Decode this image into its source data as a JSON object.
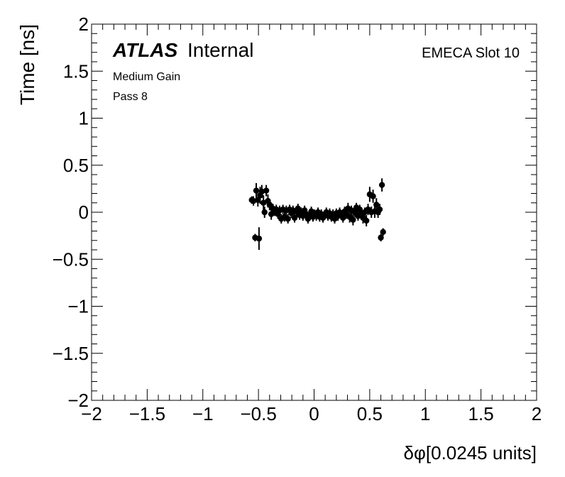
{
  "chart_data": {
    "type": "scatter",
    "title": "",
    "xlabel": "δφ[0.0245 units]",
    "ylabel": "Time [ns]",
    "xlim": [
      -2,
      2
    ],
    "ylim": [
      -2,
      2
    ],
    "x_ticks": [
      -2,
      -1.5,
      -1,
      -0.5,
      0,
      0.5,
      1,
      1.5,
      2
    ],
    "x_tick_labels": [
      "−2",
      "−1.5",
      "−1",
      "−0.5",
      "0",
      "0.5",
      "1",
      "1.5",
      "2"
    ],
    "y_ticks": [
      -2,
      -1.5,
      -1,
      -0.5,
      0,
      0.5,
      1,
      1.5,
      2
    ],
    "y_tick_labels": [
      "−2",
      "−1.5",
      "−1",
      "−0.5",
      "0",
      "0.5",
      "1",
      "1.5",
      "2"
    ],
    "grid": false,
    "annotations": {
      "experiment": "ATLAS",
      "status": "Internal",
      "line1": "Medium Gain",
      "line2": "Pass 8",
      "slot": "EMECA Slot 10"
    },
    "series": [
      {
        "marker": "filled-circle",
        "color": "#000000",
        "points": [
          {
            "x": -0.56,
            "y": 0.13,
            "err": 0.04
          },
          {
            "x": -0.545,
            "y": 0.12,
            "err": 0.05
          },
          {
            "x": -0.53,
            "y": -0.27,
            "err": 0.04
          },
          {
            "x": -0.52,
            "y": 0.23,
            "err": 0.08
          },
          {
            "x": -0.505,
            "y": 0.13,
            "err": 0.07
          },
          {
            "x": -0.495,
            "y": -0.28,
            "err": 0.12
          },
          {
            "x": -0.485,
            "y": 0.18,
            "err": 0.09
          },
          {
            "x": -0.47,
            "y": 0.22,
            "err": 0.07
          },
          {
            "x": -0.455,
            "y": 0.1,
            "err": 0.08
          },
          {
            "x": -0.445,
            "y": 0.0,
            "err": 0.06
          },
          {
            "x": -0.43,
            "y": 0.23,
            "err": 0.06
          },
          {
            "x": -0.415,
            "y": 0.12,
            "err": 0.07
          },
          {
            "x": -0.4,
            "y": 0.08,
            "err": 0.06
          },
          {
            "x": -0.385,
            "y": -0.02,
            "err": 0.06
          },
          {
            "x": -0.37,
            "y": 0.04,
            "err": 0.05
          },
          {
            "x": -0.355,
            "y": 0.01,
            "err": 0.05
          },
          {
            "x": -0.34,
            "y": 0.03,
            "err": 0.05
          },
          {
            "x": -0.325,
            "y": -0.02,
            "err": 0.05
          },
          {
            "x": -0.31,
            "y": 0.02,
            "err": 0.05
          },
          {
            "x": -0.295,
            "y": -0.07,
            "err": 0.05
          },
          {
            "x": -0.28,
            "y": 0.03,
            "err": 0.05
          },
          {
            "x": -0.265,
            "y": -0.05,
            "err": 0.05
          },
          {
            "x": -0.25,
            "y": 0.02,
            "err": 0.05
          },
          {
            "x": -0.235,
            "y": -0.07,
            "err": 0.05
          },
          {
            "x": -0.22,
            "y": 0.03,
            "err": 0.05
          },
          {
            "x": -0.205,
            "y": -0.01,
            "err": 0.05
          },
          {
            "x": -0.19,
            "y": 0.02,
            "err": 0.05
          },
          {
            "x": -0.175,
            "y": -0.06,
            "err": 0.05
          },
          {
            "x": -0.16,
            "y": 0.01,
            "err": 0.05
          },
          {
            "x": -0.145,
            "y": 0.04,
            "err": 0.05
          },
          {
            "x": -0.13,
            "y": -0.03,
            "err": 0.05
          },
          {
            "x": -0.115,
            "y": 0.0,
            "err": 0.05
          },
          {
            "x": -0.1,
            "y": -0.04,
            "err": 0.05
          },
          {
            "x": -0.085,
            "y": 0.02,
            "err": 0.05
          },
          {
            "x": -0.07,
            "y": -0.02,
            "err": 0.05
          },
          {
            "x": -0.055,
            "y": -0.07,
            "err": 0.05
          },
          {
            "x": -0.04,
            "y": -0.03,
            "err": 0.05
          },
          {
            "x": -0.025,
            "y": 0.01,
            "err": 0.05
          },
          {
            "x": -0.01,
            "y": -0.05,
            "err": 0.05
          },
          {
            "x": 0.005,
            "y": -0.02,
            "err": 0.05
          },
          {
            "x": 0.02,
            "y": -0.04,
            "err": 0.05
          },
          {
            "x": 0.035,
            "y": 0.0,
            "err": 0.05
          },
          {
            "x": 0.05,
            "y": -0.05,
            "err": 0.05
          },
          {
            "x": 0.065,
            "y": -0.02,
            "err": 0.05
          },
          {
            "x": 0.08,
            "y": -0.06,
            "err": 0.05
          },
          {
            "x": 0.095,
            "y": -0.03,
            "err": 0.05
          },
          {
            "x": 0.11,
            "y": 0.0,
            "err": 0.05
          },
          {
            "x": 0.125,
            "y": -0.04,
            "err": 0.05
          },
          {
            "x": 0.14,
            "y": -0.01,
            "err": 0.05
          },
          {
            "x": 0.155,
            "y": -0.05,
            "err": 0.05
          },
          {
            "x": 0.17,
            "y": -0.02,
            "err": 0.05
          },
          {
            "x": 0.185,
            "y": -0.07,
            "err": 0.05
          },
          {
            "x": 0.2,
            "y": -0.01,
            "err": 0.05
          },
          {
            "x": 0.215,
            "y": -0.04,
            "err": 0.05
          },
          {
            "x": 0.23,
            "y": 0.0,
            "err": 0.05
          },
          {
            "x": 0.245,
            "y": -0.03,
            "err": 0.05
          },
          {
            "x": 0.26,
            "y": -0.06,
            "err": 0.05
          },
          {
            "x": 0.275,
            "y": 0.01,
            "err": 0.05
          },
          {
            "x": 0.29,
            "y": -0.02,
            "err": 0.05
          },
          {
            "x": 0.305,
            "y": 0.04,
            "err": 0.06
          },
          {
            "x": 0.32,
            "y": -0.05,
            "err": 0.06
          },
          {
            "x": 0.335,
            "y": 0.02,
            "err": 0.05
          },
          {
            "x": 0.35,
            "y": -0.08,
            "err": 0.06
          },
          {
            "x": 0.365,
            "y": 0.0,
            "err": 0.05
          },
          {
            "x": 0.38,
            "y": 0.05,
            "err": 0.05
          },
          {
            "x": 0.395,
            "y": -0.04,
            "err": 0.05
          },
          {
            "x": 0.41,
            "y": 0.03,
            "err": 0.05
          },
          {
            "x": 0.425,
            "y": -0.02,
            "err": 0.06
          },
          {
            "x": 0.44,
            "y": -0.06,
            "err": 0.06
          },
          {
            "x": 0.455,
            "y": 0.0,
            "err": 0.05
          },
          {
            "x": 0.47,
            "y": -0.09,
            "err": 0.06
          },
          {
            "x": 0.485,
            "y": 0.03,
            "err": 0.06
          },
          {
            "x": 0.5,
            "y": 0.19,
            "err": 0.08
          },
          {
            "x": 0.515,
            "y": 0.0,
            "err": 0.06
          },
          {
            "x": 0.53,
            "y": 0.17,
            "err": 0.07
          },
          {
            "x": 0.545,
            "y": 0.01,
            "err": 0.07
          },
          {
            "x": 0.56,
            "y": 0.08,
            "err": 0.07
          },
          {
            "x": 0.575,
            "y": 0.0,
            "err": 0.06
          },
          {
            "x": 0.59,
            "y": 0.03,
            "err": 0.06
          },
          {
            "x": 0.6,
            "y": -0.27,
            "err": 0.04
          },
          {
            "x": 0.61,
            "y": 0.29,
            "err": 0.07
          },
          {
            "x": 0.62,
            "y": -0.21,
            "err": 0.04
          }
        ]
      }
    ]
  }
}
